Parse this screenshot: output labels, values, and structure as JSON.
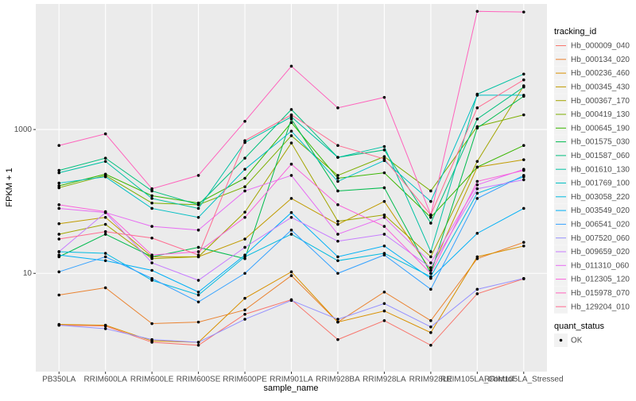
{
  "chart_data": {
    "type": "line",
    "x_label": "sample_name",
    "y_label": "FPKM + 1",
    "log_y": true,
    "grid": true,
    "legend_title": "tracking_id",
    "shape_legend": {
      "title": "quant_status",
      "labels": [
        "OK"
      ]
    },
    "categories": [
      "PB350LA",
      "RRIM600LA",
      "RRIM600LE",
      "RRIM600SE",
      "RRIM600PE",
      "RRIM901LA",
      "RRIM928BA",
      "RRIM928LA",
      "RRIM928LE",
      "RRIM105LA_Control",
      "RRIM105LA_Stressed"
    ],
    "ylim": [
      0.43,
      55700
    ],
    "yticks": [
      10,
      1000
    ],
    "series": [
      {
        "name": "Hb_000009_040",
        "color": "#F8766D",
        "values": [
          1.9,
          1.85,
          1.1,
          1.0,
          2.7,
          4.3,
          1.2,
          2.2,
          1.0,
          5.2,
          8.4
        ]
      },
      {
        "name": "Hb_000134_020",
        "color": "#EA8331",
        "values": [
          5.0,
          6.3,
          2.0,
          2.1,
          3.1,
          9.3,
          2.1,
          5.5,
          2.2,
          16,
          27
        ]
      },
      {
        "name": "Hb_000236_460",
        "color": "#D89000",
        "values": [
          1.95,
          1.9,
          1.15,
          1.1,
          4.5,
          10.5,
          2.1,
          3.0,
          1.5,
          17,
          24
        ]
      },
      {
        "name": "Hb_000345_430",
        "color": "#C09B00",
        "values": [
          49,
          60,
          17,
          17,
          30,
          110,
          48,
          100,
          11,
          300,
          380
        ]
      },
      {
        "name": "Hb_000367_170",
        "color": "#A3A500",
        "values": [
          35,
          48,
          16,
          17,
          71,
          650,
          53,
          65,
          17,
          360,
          4050
        ]
      },
      {
        "name": "Hb_000419_130",
        "color": "#7CAE00",
        "values": [
          155,
          230,
          95,
          90,
          160,
          820,
          230,
          420,
          140,
          1100,
          1600
        ]
      },
      {
        "name": "Hb_000645_190",
        "color": "#39B600",
        "values": [
          165,
          240,
          120,
          95,
          210,
          1250,
          210,
          250,
          60,
          300,
          600
        ]
      },
      {
        "name": "Hb_001575_030",
        "color": "#00BB4E",
        "values": [
          17,
          35,
          17,
          23,
          16,
          1400,
          140,
          155,
          10,
          1050,
          2900
        ]
      },
      {
        "name": "Hb_001587_060",
        "color": "#00BF7D",
        "values": [
          270,
          400,
          140,
          90,
          400,
          1900,
          410,
          520,
          50,
          1400,
          3900
        ]
      },
      {
        "name": "Hb_001610_130",
        "color": "#00C1A3",
        "values": [
          250,
          360,
          110,
          80,
          660,
          1500,
          410,
          580,
          20,
          3100,
          5900
        ]
      },
      {
        "name": "Hb_001769_100",
        "color": "#00BFC4",
        "values": [
          180,
          220,
          80,
          60,
          280,
          950,
          190,
          370,
          100,
          3000,
          3000
        ]
      },
      {
        "name": "Hb_003058_220",
        "color": "#00BAE0",
        "values": [
          20,
          19,
          8,
          5,
          17,
          35,
          15,
          19,
          9,
          130,
          220
        ]
      },
      {
        "name": "Hb_003549_020",
        "color": "#00B0F6",
        "values": [
          18,
          15,
          11,
          5.5,
          18,
          70,
          17,
          24,
          8.5,
          36,
          80
        ]
      },
      {
        "name": "Hb_006541_020",
        "color": "#35A2FF",
        "values": [
          10.5,
          17,
          8.5,
          4,
          10,
          40,
          10,
          18,
          6,
          110,
          230
        ]
      },
      {
        "name": "Hb_007520_060",
        "color": "#9590FF",
        "values": [
          1.9,
          1.7,
          1.2,
          1.1,
          2.3,
          4.2,
          2.3,
          3.8,
          1.8,
          6,
          8.5
        ]
      },
      {
        "name": "Hb_009659_020",
        "color": "#C77CFF",
        "values": [
          20,
          70,
          14,
          8,
          23,
          60,
          28,
          35,
          12,
          150,
          200
        ]
      },
      {
        "name": "Hb_011310_060",
        "color": "#E76BF3",
        "values": [
          80,
          70,
          45,
          40,
          140,
          230,
          35,
          60,
          14,
          170,
          280
        ]
      },
      {
        "name": "Hb_012305_120",
        "color": "#FA62DB",
        "values": [
          90,
          72,
          18,
          20,
          60,
          330,
          90,
          45,
          10,
          190,
          270
        ]
      },
      {
        "name": "Hb_015978_070",
        "color": "#FF62BC",
        "values": [
          600,
          870,
          150,
          230,
          1300,
          7600,
          2000,
          2800,
          65,
          44000,
          43000
        ]
      },
      {
        "name": "Hb_129204_010",
        "color": "#FF6C91",
        "values": [
          30,
          38,
          31,
          18,
          700,
          1600,
          600,
          390,
          65,
          2000,
          4900
        ]
      }
    ]
  }
}
